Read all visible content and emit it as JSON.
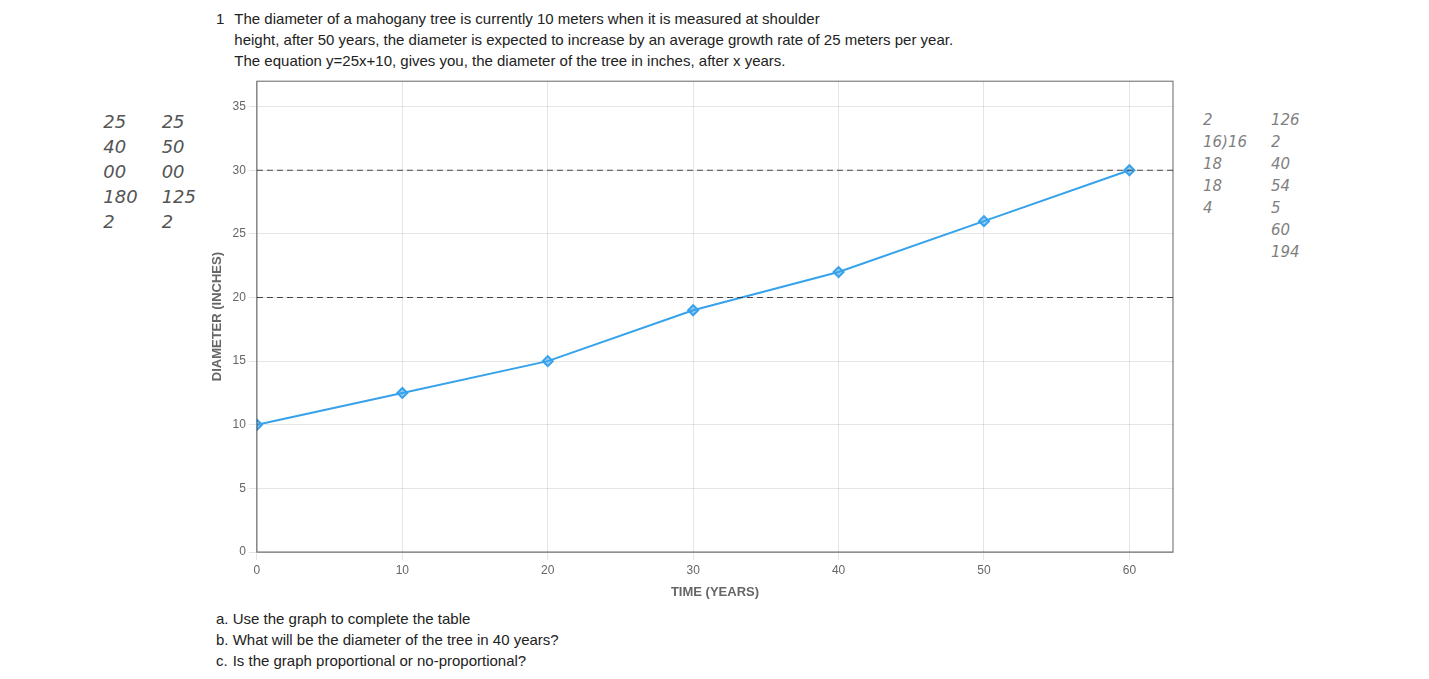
{
  "chart_data": {
    "type": "line",
    "title": [
      "The diameter of a mahogany tree is currently 10 meters when it is measured at shoulder",
      "height, after 50 years, the diameter is expected to increase by an average growth rate of 25 meters per year.",
      "The equation y=25x+10, gives you, the diameter of the tree in inches, after x years."
    ],
    "x_label": "TIME (YEARS)",
    "y_label": "DIAMETER (INCHES)",
    "x": [
      0,
      10,
      20,
      30,
      40,
      50,
      60
    ],
    "values": [
      10,
      12.5,
      15,
      19.0,
      22.0,
      26.0,
      30.0
    ],
    "marker": "diamond",
    "xlim": [
      0,
      63
    ],
    "xticks": [
      0,
      10,
      20,
      30,
      40,
      50,
      60
    ],
    "ylim": [
      0,
      37
    ],
    "yticks": [
      0,
      5,
      10,
      15,
      20,
      25,
      30,
      35
    ],
    "reference_lines": [
      20,
      30
    ],
    "grid": true,
    "annotations": [
      [
        "1"
      ],
      [
        "a.\tUse the graph to complete the table",
        "b.\tWhat will be the diameter of the tree in 40 years?",
        "c.\tIs the graph proportional or no-proportional?"
      ],
      [
        "25",
        "40",
        "00",
        "180",
        "2"
      ],
      [
        "25",
        "50",
        "00",
        "125",
        "2"
      ],
      [
        "2",
        "16)16",
        "18",
        "18",
        "4"
      ],
      [
        "126",
        "2",
        "40",
        "54",
        "5",
        "60",
        "194"
      ]
    ]
  }
}
